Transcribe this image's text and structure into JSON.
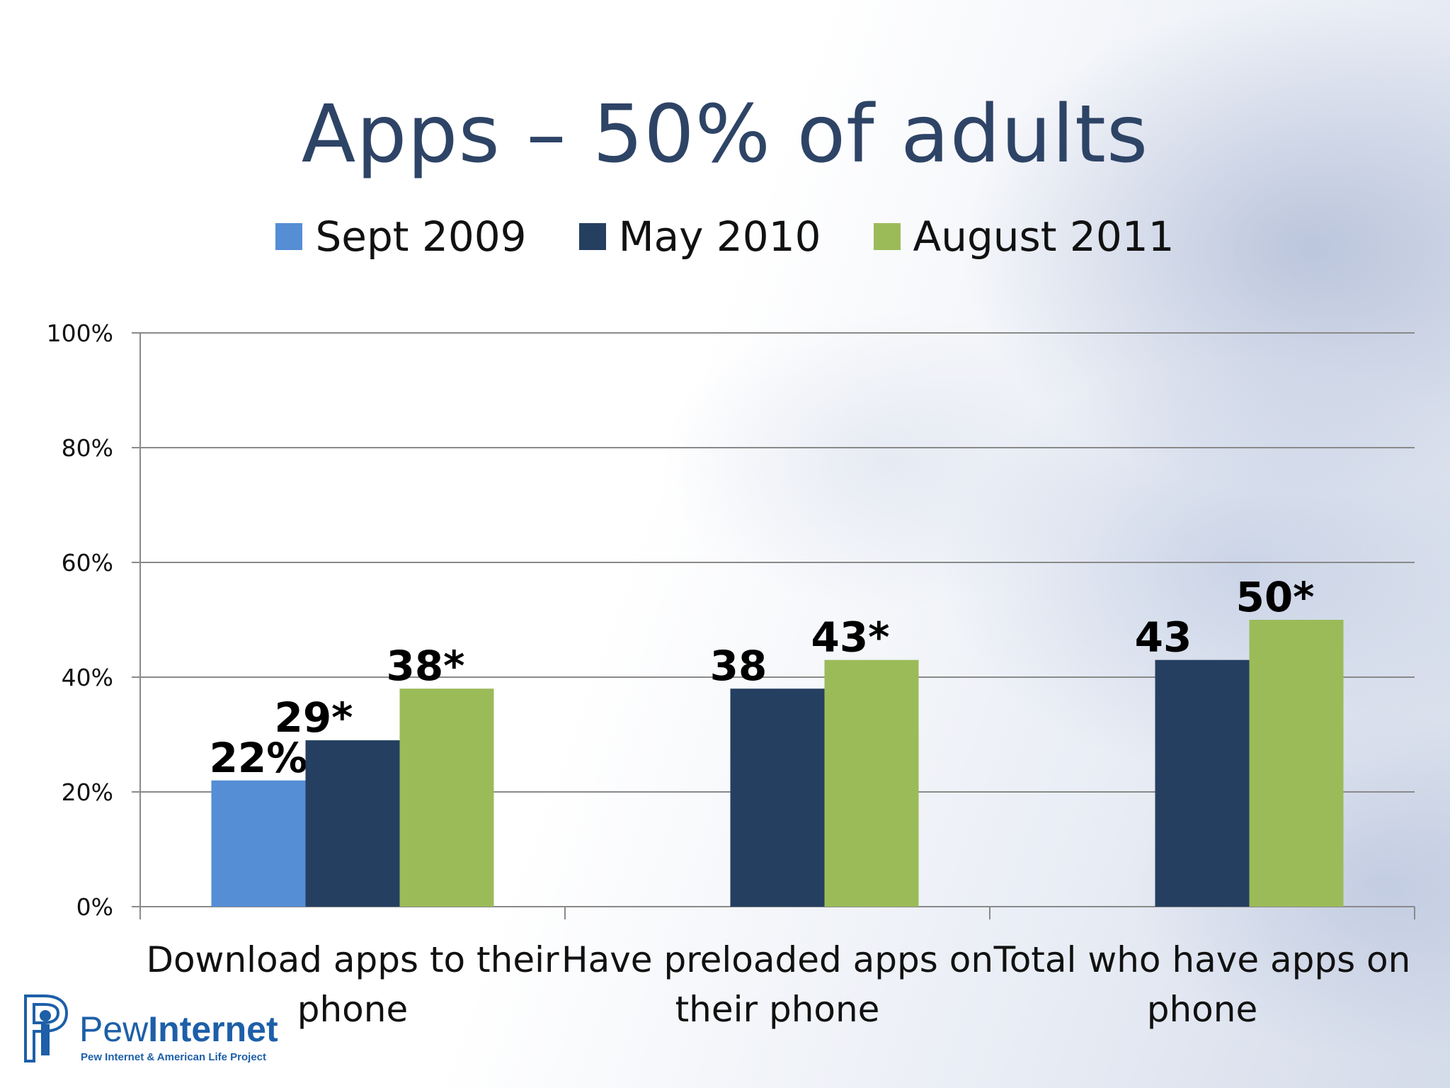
{
  "slide": {
    "title": "Apps – 50% of adults"
  },
  "logo": {
    "brand_light": "Pew",
    "brand_bold": "Internet",
    "tagline": "Pew Internet & American Life Project"
  },
  "chart_data": {
    "type": "bar",
    "categories": [
      "Download apps to their phone",
      "Have preloaded apps on their phone",
      "Total who have apps on phone"
    ],
    "category_lines": [
      [
        "Download apps to their",
        "phone"
      ],
      [
        "Have preloaded apps on",
        "their phone"
      ],
      [
        "Total who have apps on",
        "phone"
      ]
    ],
    "series": [
      {
        "name": "Sept 2009",
        "color": "#558ed5",
        "values": [
          22,
          null,
          null
        ],
        "labels": [
          "22%",
          "",
          ""
        ]
      },
      {
        "name": "May 2010",
        "color": "#253f61",
        "values": [
          29,
          38,
          43
        ],
        "labels": [
          "29*",
          "38",
          "43"
        ]
      },
      {
        "name": "August 2011",
        "color": "#9bbb59",
        "values": [
          38,
          43,
          50
        ],
        "labels": [
          "38*",
          "43*",
          "50*"
        ]
      }
    ],
    "y_ticks": [
      "0%",
      "20%",
      "40%",
      "60%",
      "80%",
      "100%"
    ],
    "ylim": [
      0,
      100
    ],
    "grid": true,
    "legend_position": "top"
  }
}
